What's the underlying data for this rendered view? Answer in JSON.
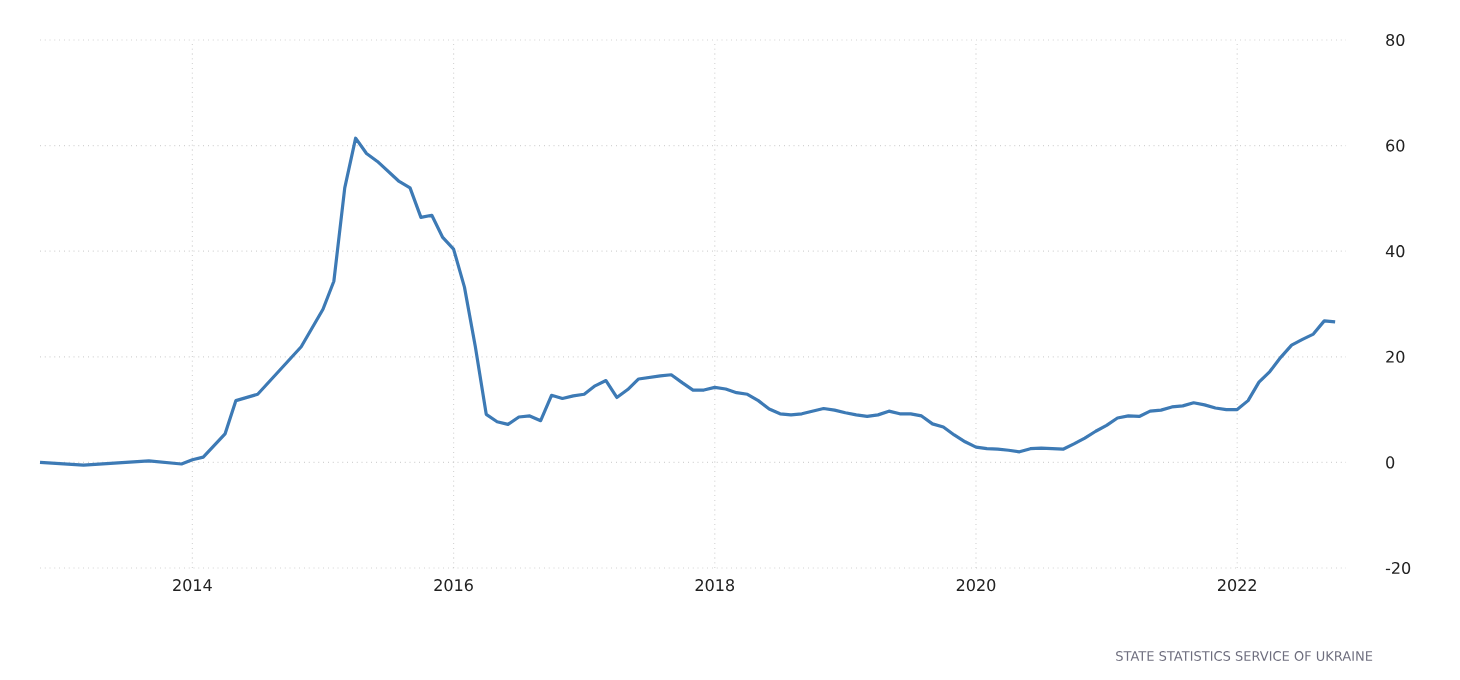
{
  "chart_data": {
    "type": "line",
    "x": [
      "2012-11",
      "2013-03",
      "2013-09",
      "2013-12",
      "2014-01",
      "2014-02",
      "2014-04",
      "2014-05",
      "2014-07",
      "2014-09",
      "2014-11",
      "2015-01",
      "2015-02",
      "2015-03",
      "2015-04",
      "2015-05",
      "2015-06",
      "2015-08",
      "2015-09",
      "2015-10",
      "2015-11",
      "2015-12",
      "2016-01",
      "2016-02",
      "2016-03",
      "2016-04",
      "2016-05",
      "2016-06",
      "2016-07",
      "2016-08",
      "2016-09",
      "2016-10",
      "2016-11",
      "2016-12",
      "2017-01",
      "2017-02",
      "2017-03",
      "2017-04",
      "2017-05",
      "2017-06",
      "2017-07",
      "2017-08",
      "2017-09",
      "2017-10",
      "2017-11",
      "2017-12",
      "2018-01",
      "2018-02",
      "2018-03",
      "2018-04",
      "2018-05",
      "2018-06",
      "2018-07",
      "2018-08",
      "2018-09",
      "2018-10",
      "2018-11",
      "2018-12",
      "2019-01",
      "2019-02",
      "2019-03",
      "2019-04",
      "2019-05",
      "2019-06",
      "2019-07",
      "2019-08",
      "2019-09",
      "2019-10",
      "2019-11",
      "2019-12",
      "2020-01",
      "2020-02",
      "2020-03",
      "2020-04",
      "2020-05",
      "2020-06",
      "2020-07",
      "2020-08",
      "2020-09",
      "2020-10",
      "2020-11",
      "2020-12",
      "2021-01",
      "2021-02",
      "2021-03",
      "2021-04",
      "2021-05",
      "2021-06",
      "2021-07",
      "2021-08",
      "2021-09",
      "2021-10",
      "2021-11",
      "2021-12",
      "2022-01",
      "2022-02",
      "2022-03",
      "2022-04",
      "2022-05",
      "2022-06",
      "2022-07",
      "2022-08",
      "2022-09",
      "2022-10"
    ],
    "series": [
      {
        "color": "#3d7ab5",
        "values": [
          0,
          -0.5,
          0.3,
          -0.3,
          0.5,
          1.0,
          5.4,
          11.7,
          12.9,
          17.4,
          21.9,
          29,
          34.3,
          52,
          61.4,
          58.5,
          57,
          53.2,
          52,
          46.4,
          46.8,
          42.6,
          40.4,
          33.2,
          21.9,
          9.1,
          7.7,
          7.2,
          8.6,
          8.8,
          7.9,
          12.7,
          12.1,
          12.6,
          12.9,
          14.5,
          15.5,
          12.3,
          13.8,
          15.8,
          16.1,
          16.4,
          16.6,
          15.1,
          13.7,
          13.7,
          14.2,
          13.9,
          13.2,
          12.9,
          11.7,
          10.1,
          9.2,
          9.0,
          9.2,
          9.7,
          10.2,
          9.9,
          9.4,
          9.0,
          8.7,
          9.0,
          9.7,
          9.2,
          9.2,
          8.8,
          7.3,
          6.7,
          5.2,
          3.9,
          2.9,
          2.6,
          2.5,
          2.3,
          2.0,
          2.6,
          2.7,
          2.6,
          2.5,
          3.5,
          4.6,
          5.9,
          7.0,
          8.4,
          8.8,
          8.7,
          9.7,
          9.9,
          10.5,
          10.7,
          11.3,
          10.9,
          10.3,
          10.0,
          10.0,
          11.7,
          15.2,
          17.2,
          19.9,
          22.2,
          23.3,
          24.3,
          26.8,
          26.6
        ]
      }
    ],
    "xlim": [
      "2012-11",
      "2022-11"
    ],
    "xticks": [
      "2014",
      "2016",
      "2018",
      "2020",
      "2022"
    ],
    "ylim": [
      -20,
      80
    ],
    "yticks": [
      -20,
      0,
      20,
      40,
      60,
      80
    ],
    "grid": true,
    "annotations": [
      "STATE STATISTICS SERVICE OF UKRAINE"
    ]
  }
}
